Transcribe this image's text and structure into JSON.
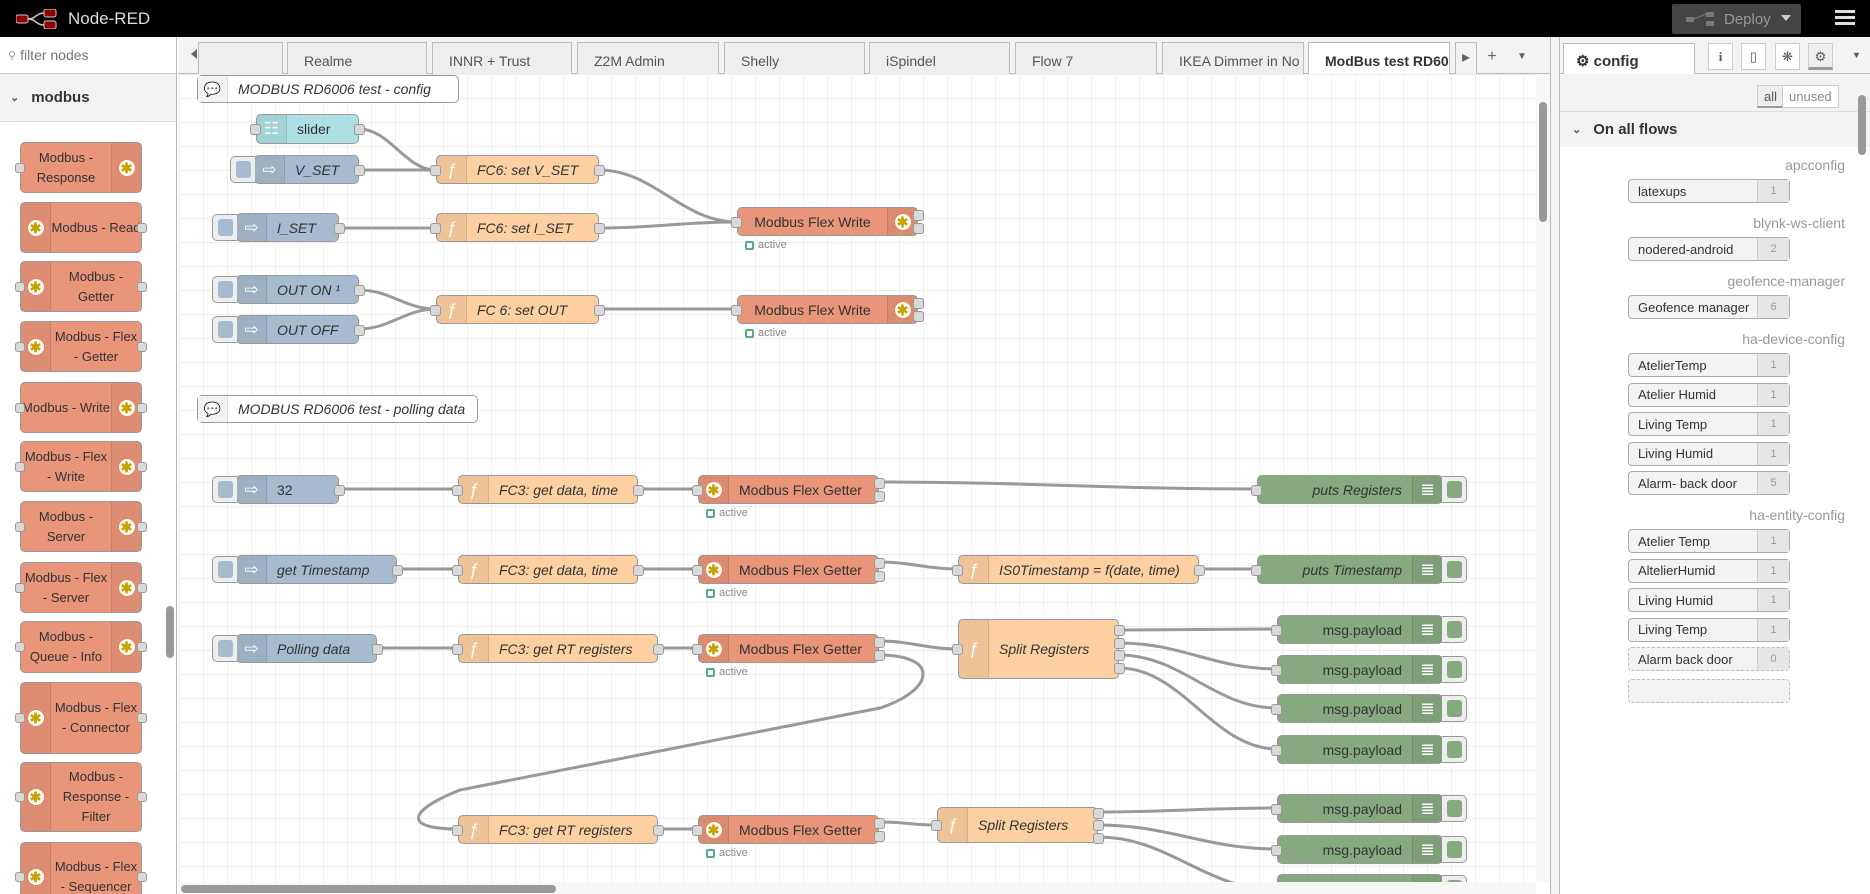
{
  "header": {
    "title": "Node-RED",
    "deploy_label": "Deploy"
  },
  "palette": {
    "filter_placeholder": "filter nodes",
    "category": "modbus",
    "nodes": [
      {
        "label": "Modbus - Response"
      },
      {
        "label": "Modbus - Read"
      },
      {
        "label": "Modbus - Getter"
      },
      {
        "label": "Modbus - Flex - Getter"
      },
      {
        "label": "Modbus - Write"
      },
      {
        "label": "Modbus - Flex - Write"
      },
      {
        "label": "Modbus - Server"
      },
      {
        "label": "Modbus - Flex - Server"
      },
      {
        "label": "Modbus - Queue - Info"
      },
      {
        "label": "Modbus - Flex - Connector"
      },
      {
        "label": "Modbus - Response - Filter"
      },
      {
        "label": "Modbus - Flex - Sequencer"
      }
    ]
  },
  "tabs": [
    "",
    "Realme",
    "INNR + Trust",
    "Z2M Admin",
    "Shelly",
    "iSpindel",
    "Flow 7",
    "IKEA Dimmer in No",
    "ModBus test RD60"
  ],
  "active_tab": "ModBus test RD60",
  "flow": {
    "nodes": [
      {
        "type": "comment",
        "label": "MODBUS RD6006 test - config"
      },
      {
        "type": "ui_slider",
        "label": "slider"
      },
      {
        "type": "inject",
        "label": "V_SET"
      },
      {
        "type": "function",
        "label": "FC6: set V_SET"
      },
      {
        "type": "modbus-flex-write",
        "label": "Modbus Flex Write",
        "status": "active"
      },
      {
        "type": "inject",
        "label": "I_SET"
      },
      {
        "type": "function",
        "label": "FC6: set I_SET"
      },
      {
        "type": "inject",
        "label": "OUT ON ¹"
      },
      {
        "type": "inject",
        "label": "OUT OFF"
      },
      {
        "type": "function",
        "label": "FC 6: set OUT"
      },
      {
        "type": "modbus-flex-write",
        "label": "Modbus Flex Write",
        "status": "active"
      },
      {
        "type": "comment",
        "label": "MODBUS RD6006 test - polling data"
      },
      {
        "type": "inject",
        "label": "32"
      },
      {
        "type": "function",
        "label": "FC3: get data, time"
      },
      {
        "type": "modbus-flex-getter",
        "label": "Modbus Flex Getter",
        "status": "active"
      },
      {
        "type": "debug",
        "label": "puts Registers"
      },
      {
        "type": "inject",
        "label": "get Timestamp"
      },
      {
        "type": "function",
        "label": "FC3: get data, time"
      },
      {
        "type": "modbus-flex-getter",
        "label": "Modbus Flex Getter",
        "status": "active"
      },
      {
        "type": "function",
        "label": "IS0Timestamp = f(date, time)"
      },
      {
        "type": "debug",
        "label": "puts Timestamp"
      },
      {
        "type": "inject",
        "label": "Polling data"
      },
      {
        "type": "function",
        "label": "FC3: get RT registers"
      },
      {
        "type": "modbus-flex-getter",
        "label": "Modbus Flex Getter",
        "status": "active"
      },
      {
        "type": "function",
        "label": "Split Registers"
      },
      {
        "type": "debug",
        "label": "msg.payload"
      },
      {
        "type": "debug",
        "label": "msg.payload"
      },
      {
        "type": "debug",
        "label": "msg.payload"
      },
      {
        "type": "debug",
        "label": "msg.payload"
      },
      {
        "type": "function",
        "label": "FC3: get RT registers"
      },
      {
        "type": "modbus-flex-getter",
        "label": "Modbus Flex Getter",
        "status": "active"
      },
      {
        "type": "function",
        "label": "Split Registers"
      },
      {
        "type": "debug",
        "label": "msg.payload"
      },
      {
        "type": "debug",
        "label": "msg.payload"
      },
      {
        "type": "debug",
        "label": "msg.payload"
      }
    ]
  },
  "colors": {
    "inject": "#a6bbcf",
    "function": "#fdd0a2",
    "modbus": "#e8957a",
    "debug": "#87a980",
    "ui": "#aee0e3",
    "comment": "#ffffff",
    "status_active": "#55aa88"
  },
  "sidebar": {
    "tab_label": "config",
    "filter_buttons": [
      "all",
      "unused"
    ],
    "section": "On all flows",
    "groups": [
      {
        "type": "apcconfig",
        "items": [
          {
            "name": "latexups",
            "count": "1"
          }
        ]
      },
      {
        "type": "blynk-ws-client",
        "items": [
          {
            "name": "nodered-android",
            "count": "2"
          }
        ]
      },
      {
        "type": "geofence-manager",
        "items": [
          {
            "name": "Geofence manager",
            "count": "6"
          }
        ]
      },
      {
        "type": "ha-device-config",
        "items": [
          {
            "name": "AtelierTemp",
            "count": "1"
          },
          {
            "name": "Atelier Humid",
            "count": "1"
          },
          {
            "name": "Living Temp",
            "count": "1"
          },
          {
            "name": "Living Humid",
            "count": "1"
          },
          {
            "name": "Alarm- back door",
            "count": "5"
          }
        ]
      },
      {
        "type": "ha-entity-config",
        "items": [
          {
            "name": "Atelier Temp",
            "count": "1"
          },
          {
            "name": "AltelierHumid",
            "count": "1"
          },
          {
            "name": "Living Humid",
            "count": "1"
          },
          {
            "name": "Living Temp",
            "count": "1"
          },
          {
            "name": "Alarm back door",
            "count": "0",
            "unused": true
          }
        ]
      }
    ]
  }
}
